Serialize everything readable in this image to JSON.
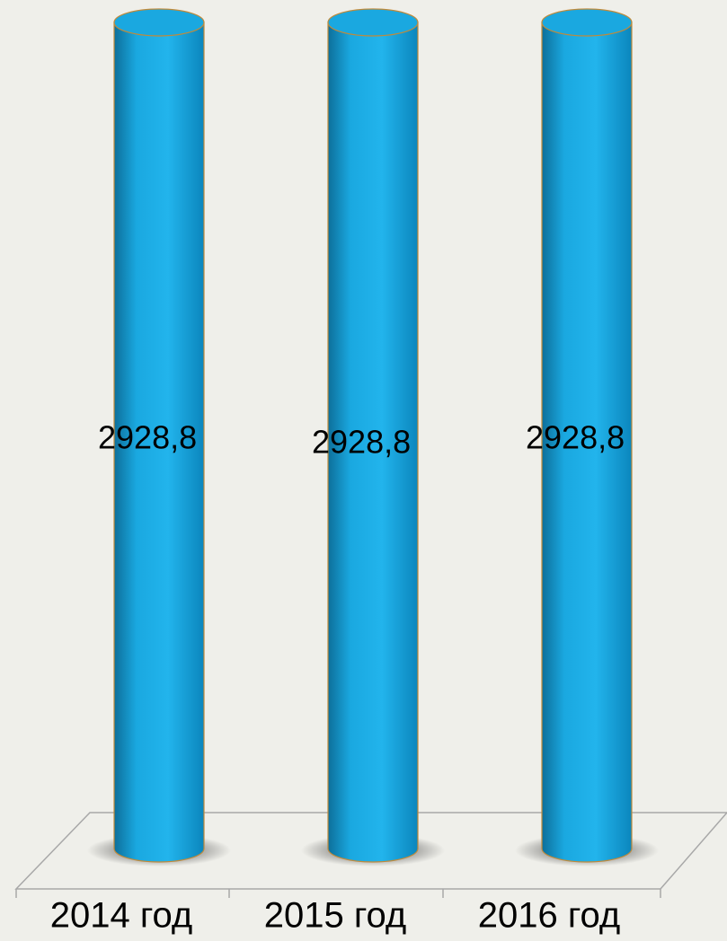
{
  "chart_data": {
    "type": "bar",
    "categories": [
      "2014 год",
      "2015 год",
      "2016 год"
    ],
    "values": [
      2928.8,
      2928.8,
      2928.8
    ],
    "value_labels": [
      "2928,8",
      "2928,8",
      "2928,8"
    ],
    "color": "#1aa8e0"
  }
}
